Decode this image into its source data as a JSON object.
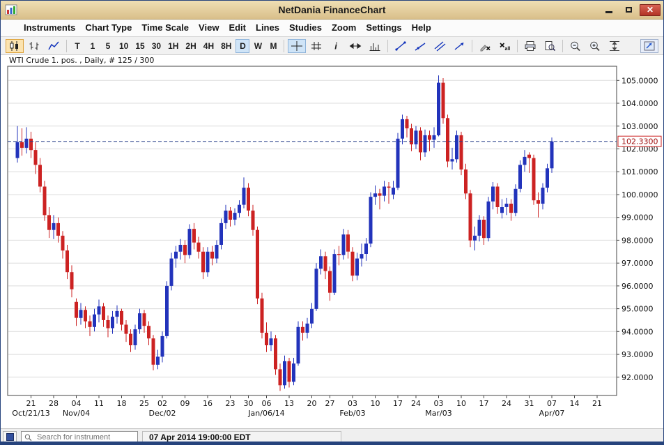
{
  "window": {
    "title": "NetDania FinanceChart",
    "controls": {
      "minimize": "minimize",
      "maximize": "maximize",
      "close": "close"
    }
  },
  "menu": {
    "items": [
      "Instruments",
      "Chart Type",
      "Time Scale",
      "View",
      "Edit",
      "Lines",
      "Studies",
      "Zoom",
      "Settings",
      "Help"
    ]
  },
  "toolbar": {
    "buttons": [
      {
        "type": "icon",
        "name": "candlestick-chart",
        "icon": "candles",
        "selected": true,
        "highlight": "amber"
      },
      {
        "type": "icon",
        "name": "bar-chart",
        "icon": "ohlc"
      },
      {
        "type": "icon",
        "name": "line-chart",
        "icon": "linechart"
      },
      {
        "type": "sep"
      },
      {
        "type": "text",
        "name": "scale-tick",
        "label": "T"
      },
      {
        "type": "text",
        "name": "scale-1min",
        "label": "1"
      },
      {
        "type": "text",
        "name": "scale-5min",
        "label": "5"
      },
      {
        "type": "text",
        "name": "scale-10min",
        "label": "10"
      },
      {
        "type": "text",
        "name": "scale-15min",
        "label": "15"
      },
      {
        "type": "text",
        "name": "scale-30min",
        "label": "30"
      },
      {
        "type": "text",
        "name": "scale-1hour",
        "label": "1H"
      },
      {
        "type": "text",
        "name": "scale-2hour",
        "label": "2H"
      },
      {
        "type": "text",
        "name": "scale-4hour",
        "label": "4H"
      },
      {
        "type": "text",
        "name": "scale-8hour",
        "label": "8H"
      },
      {
        "type": "text",
        "name": "scale-daily",
        "label": "D",
        "selected": true,
        "highlight": "blue"
      },
      {
        "type": "text",
        "name": "scale-weekly",
        "label": "W"
      },
      {
        "type": "text",
        "name": "scale-monthly",
        "label": "M"
      },
      {
        "type": "sep"
      },
      {
        "type": "icon",
        "name": "crosshair",
        "icon": "crosshair",
        "selected": true,
        "highlight": "blue"
      },
      {
        "type": "icon",
        "name": "grid-toggle",
        "icon": "grid"
      },
      {
        "type": "icon",
        "name": "info",
        "icon": "info"
      },
      {
        "type": "icon",
        "name": "horizontal-scroll",
        "icon": "harrows"
      },
      {
        "type": "icon",
        "name": "volume",
        "icon": "volume"
      },
      {
        "type": "sep"
      },
      {
        "type": "icon",
        "name": "trend-line",
        "icon": "trendline"
      },
      {
        "type": "icon",
        "name": "semi-line",
        "icon": "semiline"
      },
      {
        "type": "icon",
        "name": "channel-lines",
        "icon": "channel"
      },
      {
        "type": "icon",
        "name": "arrow-line",
        "icon": "rayline"
      },
      {
        "type": "sep"
      },
      {
        "type": "icon",
        "name": "remove-drawing",
        "icon": "erase"
      },
      {
        "type": "icon",
        "name": "remove-all-drawings",
        "icon": "eraseall"
      },
      {
        "type": "sep"
      },
      {
        "type": "icon",
        "name": "print",
        "icon": "print"
      },
      {
        "type": "icon",
        "name": "print-preview",
        "icon": "preview"
      },
      {
        "type": "sep"
      },
      {
        "type": "icon",
        "name": "zoom-out",
        "icon": "zoomout"
      },
      {
        "type": "icon",
        "name": "zoom-in",
        "icon": "zoomin"
      },
      {
        "type": "icon",
        "name": "fit-vertical",
        "icon": "fitv"
      }
    ],
    "panel_button": {
      "name": "side-panel-toggle",
      "icon": "panel"
    }
  },
  "chart": {
    "label": "WTI Crude 1. pos. , Daily, # 125 / 300",
    "last_price_label": "102.3300",
    "up_color": "#2233bb",
    "down_color": "#cc2222",
    "dashed_line_color": "#28408c",
    "price_box_border": "#cc2222"
  },
  "chart_data": {
    "type": "candlestick",
    "title": "WTI Crude 1. pos., Daily",
    "bars_shown": 125,
    "bars_total": 300,
    "grid": "horizontal",
    "y_range": [
      91.2,
      105.62
    ],
    "y_gridlines": [
      92,
      93,
      94,
      95,
      96,
      97,
      98,
      99,
      100,
      101,
      102,
      103,
      104,
      105
    ],
    "last_price": 102.33,
    "x_ticks": [
      {
        "label": "21",
        "bar": 3
      },
      {
        "label": "28",
        "bar": 8
      },
      {
        "label": "04",
        "bar": 13
      },
      {
        "label": "11",
        "bar": 18
      },
      {
        "label": "18",
        "bar": 23
      },
      {
        "label": "25",
        "bar": 28
      },
      {
        "label": "02",
        "bar": 32
      },
      {
        "label": "09",
        "bar": 37
      },
      {
        "label": "16",
        "bar": 42
      },
      {
        "label": "23",
        "bar": 47
      },
      {
        "label": "30",
        "bar": 51
      },
      {
        "label": "06",
        "bar": 55
      },
      {
        "label": "13",
        "bar": 60
      },
      {
        "label": "20",
        "bar": 65
      },
      {
        "label": "27",
        "bar": 69
      },
      {
        "label": "03",
        "bar": 74
      },
      {
        "label": "10",
        "bar": 79
      },
      {
        "label": "17",
        "bar": 84
      },
      {
        "label": "24",
        "bar": 88
      },
      {
        "label": "03",
        "bar": 93
      },
      {
        "label": "10",
        "bar": 98
      },
      {
        "label": "17",
        "bar": 103
      },
      {
        "label": "24",
        "bar": 108
      },
      {
        "label": "31",
        "bar": 113
      },
      {
        "label": "07",
        "bar": 118
      },
      {
        "label": "14",
        "bar": 123
      },
      {
        "label": "21",
        "bar": 128
      }
    ],
    "x_dates": [
      {
        "label": "Oct/21/13",
        "bar": 3
      },
      {
        "label": "Nov/04",
        "bar": 13
      },
      {
        "label": "Dec/02",
        "bar": 32
      },
      {
        "label": "Jan/06/14",
        "bar": 55
      },
      {
        "label": "Feb/03",
        "bar": 74
      },
      {
        "label": "Mar/03",
        "bar": 93
      },
      {
        "label": "Apr/07",
        "bar": 118
      }
    ],
    "candles": [
      [
        "2013-10-16",
        101.6,
        103.0,
        101.4,
        102.3
      ],
      [
        "2013-10-17",
        102.3,
        102.9,
        101.7,
        102.05
      ],
      [
        "2013-10-18",
        102.05,
        102.95,
        101.8,
        102.45
      ],
      [
        "2013-10-21",
        102.45,
        102.75,
        101.6,
        101.95
      ],
      [
        "2013-10-22",
        101.95,
        102.3,
        100.9,
        101.3
      ],
      [
        "2013-10-23",
        101.3,
        101.6,
        100.1,
        100.35
      ],
      [
        "2013-10-24",
        100.35,
        100.6,
        98.85,
        99.1
      ],
      [
        "2013-10-25",
        99.1,
        99.45,
        98.1,
        98.45
      ],
      [
        "2013-10-28",
        98.45,
        99.1,
        98.05,
        98.75
      ],
      [
        "2013-10-29",
        98.75,
        99.0,
        97.9,
        98.2
      ],
      [
        "2013-10-30",
        98.2,
        98.4,
        97.2,
        97.55
      ],
      [
        "2013-10-31",
        97.55,
        97.8,
        96.3,
        96.6
      ],
      [
        "2013-11-01",
        96.6,
        96.9,
        95.5,
        95.85
      ],
      [
        "2013-11-04",
        95.3,
        95.45,
        94.25,
        94.6
      ],
      [
        "2013-11-05",
        94.6,
        95.25,
        94.3,
        94.95
      ],
      [
        "2013-11-06",
        94.95,
        95.1,
        94.15,
        94.45
      ],
      [
        "2013-11-07",
        94.45,
        94.7,
        93.8,
        94.2
      ],
      [
        "2013-11-08",
        94.2,
        95.0,
        94.0,
        94.75
      ],
      [
        "2013-11-11",
        94.75,
        95.4,
        94.4,
        95.1
      ],
      [
        "2013-11-12",
        95.1,
        95.25,
        94.2,
        94.5
      ],
      [
        "2013-11-13",
        94.5,
        94.7,
        93.75,
        94.15
      ],
      [
        "2013-11-14",
        94.15,
        94.9,
        93.9,
        94.65
      ],
      [
        "2013-11-15",
        94.65,
        95.15,
        94.35,
        94.9
      ],
      [
        "2013-11-18",
        94.9,
        95.0,
        94.05,
        94.3
      ],
      [
        "2013-11-19",
        94.3,
        94.5,
        93.55,
        93.9
      ],
      [
        "2013-11-20",
        93.9,
        94.1,
        93.1,
        93.4
      ],
      [
        "2013-11-21",
        93.4,
        94.3,
        93.2,
        94.1
      ],
      [
        "2013-11-22",
        94.1,
        95.0,
        93.9,
        94.8
      ],
      [
        "2013-11-25",
        94.8,
        94.95,
        93.95,
        94.25
      ],
      [
        "2013-11-26",
        94.25,
        94.45,
        93.4,
        93.7
      ],
      [
        "2013-11-27",
        93.7,
        93.85,
        92.3,
        92.55
      ],
      [
        "2013-11-29",
        92.55,
        93.2,
        92.35,
        92.9
      ],
      [
        "2013-12-02",
        92.9,
        94.0,
        92.65,
        93.8
      ],
      [
        "2013-12-03",
        93.8,
        96.2,
        93.7,
        96.0
      ],
      [
        "2013-12-04",
        96.0,
        97.45,
        95.8,
        97.2
      ],
      [
        "2013-12-05",
        97.2,
        97.75,
        96.8,
        97.5
      ],
      [
        "2013-12-06",
        97.5,
        98.05,
        97.15,
        97.8
      ],
      [
        "2013-12-09",
        97.8,
        98.0,
        97.0,
        97.35
      ],
      [
        "2013-12-10",
        97.35,
        98.7,
        97.2,
        98.5
      ],
      [
        "2013-12-11",
        98.5,
        98.75,
        97.6,
        97.9
      ],
      [
        "2013-12-12",
        97.9,
        98.15,
        97.2,
        97.5
      ],
      [
        "2013-12-13",
        97.5,
        97.7,
        96.3,
        96.6
      ],
      [
        "2013-12-16",
        96.6,
        97.7,
        96.4,
        97.5
      ],
      [
        "2013-12-17",
        97.5,
        97.75,
        96.9,
        97.2
      ],
      [
        "2013-12-18",
        97.2,
        98.0,
        97.0,
        97.8
      ],
      [
        "2013-12-19",
        97.8,
        98.95,
        97.6,
        98.75
      ],
      [
        "2013-12-20",
        98.75,
        99.55,
        98.5,
        99.3
      ],
      [
        "2013-12-23",
        99.3,
        99.45,
        98.6,
        98.9
      ],
      [
        "2013-12-24",
        98.9,
        99.4,
        98.65,
        99.2
      ],
      [
        "2013-12-26",
        99.2,
        99.75,
        99.0,
        99.55
      ],
      [
        "2013-12-27",
        99.55,
        100.75,
        99.4,
        100.3
      ],
      [
        "2013-12-30",
        100.3,
        100.5,
        99.05,
        99.3
      ],
      [
        "2013-12-31",
        99.3,
        99.55,
        98.2,
        98.45
      ],
      [
        "2014-01-02",
        98.45,
        98.6,
        95.2,
        95.45
      ],
      [
        "2014-01-03",
        95.45,
        95.7,
        93.7,
        93.95
      ],
      [
        "2014-01-06",
        93.95,
        94.4,
        93.1,
        93.4
      ],
      [
        "2014-01-07",
        93.4,
        94.0,
        93.15,
        93.7
      ],
      [
        "2014-01-08",
        93.7,
        93.85,
        92.1,
        92.35
      ],
      [
        "2014-01-09",
        92.35,
        92.6,
        91.4,
        91.65
      ],
      [
        "2014-01-10",
        91.65,
        92.95,
        91.5,
        92.7
      ],
      [
        "2014-01-13",
        92.7,
        92.85,
        91.55,
        91.8
      ],
      [
        "2014-01-14",
        91.8,
        92.85,
        91.65,
        92.6
      ],
      [
        "2014-01-15",
        92.6,
        94.45,
        92.5,
        94.2
      ],
      [
        "2014-01-16",
        94.2,
        94.45,
        93.6,
        93.95
      ],
      [
        "2014-01-17",
        93.95,
        94.6,
        93.7,
        94.35
      ],
      [
        "2014-01-21",
        94.35,
        95.25,
        94.15,
        94.99
      ],
      [
        "2014-01-22",
        94.99,
        97.0,
        94.9,
        96.75
      ],
      [
        "2014-01-23",
        96.75,
        97.6,
        96.5,
        97.3
      ],
      [
        "2014-01-24",
        97.3,
        97.5,
        96.3,
        96.65
      ],
      [
        "2014-01-27",
        96.65,
        96.85,
        95.35,
        95.7
      ],
      [
        "2014-01-28",
        95.7,
        97.6,
        95.6,
        97.4
      ],
      [
        "2014-01-29",
        97.4,
        97.75,
        96.9,
        97.35
      ],
      [
        "2014-01-30",
        97.35,
        98.5,
        97.15,
        98.25
      ],
      [
        "2014-01-31",
        98.25,
        98.45,
        97.2,
        97.5
      ],
      [
        "2014-02-03",
        97.5,
        97.7,
        96.2,
        96.45
      ],
      [
        "2014-02-04",
        96.45,
        97.45,
        96.25,
        97.2
      ],
      [
        "2014-02-05",
        97.2,
        97.85,
        96.85,
        97.4
      ],
      [
        "2014-02-06",
        97.4,
        98.1,
        97.1,
        97.85
      ],
      [
        "2014-02-07",
        97.85,
        100.1,
        97.7,
        99.9
      ],
      [
        "2014-02-10",
        99.9,
        100.4,
        99.55,
        100.05
      ],
      [
        "2014-02-11",
        100.05,
        100.25,
        99.35,
        99.95
      ],
      [
        "2014-02-12",
        99.95,
        100.6,
        99.7,
        100.35
      ],
      [
        "2014-02-13",
        100.35,
        100.55,
        99.6,
        100.3
      ],
      [
        "2014-02-14",
        100.0,
        100.6,
        99.8,
        100.3
      ],
      [
        "2014-02-18",
        100.3,
        102.7,
        100.2,
        102.45
      ],
      [
        "2014-02-19",
        102.45,
        103.5,
        102.2,
        103.3
      ],
      [
        "2014-02-20",
        103.3,
        103.45,
        102.5,
        102.9
      ],
      [
        "2014-02-21",
        102.9,
        103.1,
        101.9,
        102.2
      ],
      [
        "2014-02-24",
        102.2,
        103.0,
        102.0,
        102.8
      ],
      [
        "2014-02-25",
        102.8,
        102.95,
        101.5,
        101.85
      ],
      [
        "2014-02-26",
        101.85,
        102.85,
        101.65,
        102.6
      ],
      [
        "2014-02-27",
        102.6,
        102.8,
        101.9,
        102.4
      ],
      [
        "2014-02-28",
        102.4,
        102.95,
        102.05,
        102.6
      ],
      [
        "2014-03-03",
        102.6,
        105.22,
        102.55,
        104.9
      ],
      [
        "2014-03-04",
        104.9,
        105.1,
        103.1,
        103.35
      ],
      [
        "2014-03-05",
        103.35,
        103.5,
        101.2,
        101.45
      ],
      [
        "2014-03-06",
        101.45,
        102.05,
        101.1,
        101.55
      ],
      [
        "2014-03-07",
        101.55,
        102.8,
        101.4,
        102.6
      ],
      [
        "2014-03-10",
        102.6,
        102.75,
        100.85,
        101.1
      ],
      [
        "2014-03-11",
        101.1,
        101.35,
        99.8,
        100.05
      ],
      [
        "2014-03-12",
        100.05,
        100.2,
        97.7,
        97.99
      ],
      [
        "2014-03-13",
        97.99,
        98.6,
        97.55,
        98.2
      ],
      [
        "2014-03-14",
        98.2,
        99.1,
        97.95,
        98.9
      ],
      [
        "2014-03-17",
        98.9,
        99.05,
        97.8,
        98.1
      ],
      [
        "2014-03-18",
        98.1,
        99.9,
        97.95,
        99.7
      ],
      [
        "2014-03-19",
        99.7,
        100.55,
        99.35,
        100.35
      ],
      [
        "2014-03-20",
        100.35,
        100.5,
        99.15,
        99.45
      ],
      [
        "2014-03-21",
        99.2,
        99.8,
        98.95,
        99.45
      ],
      [
        "2014-03-24",
        99.45,
        99.85,
        99.1,
        99.6
      ],
      [
        "2014-03-25",
        99.6,
        99.8,
        98.85,
        99.2
      ],
      [
        "2014-03-26",
        99.2,
        100.45,
        99.05,
        100.25
      ],
      [
        "2014-03-27",
        100.25,
        101.5,
        100.1,
        101.3
      ],
      [
        "2014-03-28",
        101.3,
        101.95,
        101.0,
        101.65
      ],
      [
        "2014-03-31",
        101.75,
        101.85,
        100.95,
        101.6
      ],
      [
        "2014-04-01",
        101.6,
        101.75,
        99.55,
        99.75
      ],
      [
        "2014-04-02",
        99.75,
        100.1,
        99.0,
        99.6
      ],
      [
        "2014-04-03",
        99.6,
        100.5,
        99.35,
        100.3
      ],
      [
        "2014-04-04",
        100.3,
        101.35,
        100.1,
        101.15
      ],
      [
        "2014-04-07",
        101.15,
        102.5,
        100.95,
        102.33
      ]
    ]
  },
  "statusbar": {
    "search_placeholder": "Search for instrument",
    "timestamp": "07 Apr 2014 19:00:00 EDT"
  }
}
